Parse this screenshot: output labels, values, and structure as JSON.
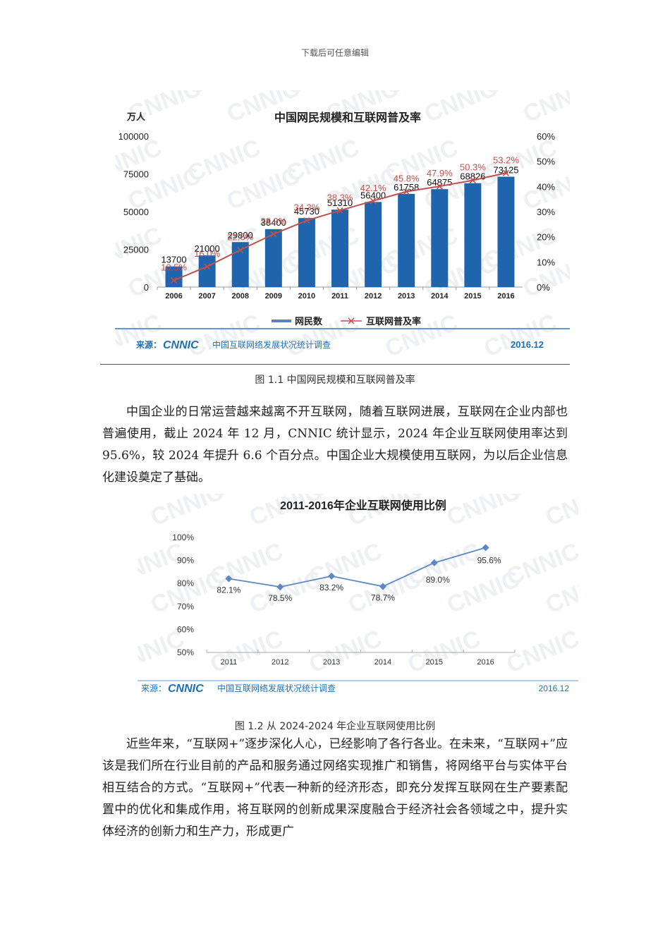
{
  "page": {
    "header_note": "下载后可任意编辑"
  },
  "figure1": {
    "caption": "图 1.1 中国网民规模和互联网普及率",
    "source_label": "来源：",
    "source_logo": "CNNIC",
    "source_text": "中国互联网络发展状况统计调查",
    "source_date": "2016.12",
    "watermark": "CNNIC"
  },
  "paragraph1": "中国企业的日常运营越来越离不开互联网，随着互联网进展，互联网在企业内部也普遍使用，截止 2024 年 12 月，CNNIC 统计显示，2024 年企业互联网使用率达到 95.6%，较 2024 年提升 6.6 个百分点。中国企业大规模使用互联网，为以后企业信息化建设奠定了基础。",
  "figure2": {
    "caption": "图 1.2 从 2024-2024 年企业互联网使用比例",
    "source_label": "来源：",
    "source_logo": "CNNIC",
    "source_text": "中国互联网络发展状况统计调查",
    "source_date": "2016.12"
  },
  "paragraph2": "近些年来，“互联网+”逐步深化人心，已经影响了各行各业。在未来，“互联网+”应该是我们所在行业目前的产品和服务通过网络实现推广和销售，将网络平台与实体平台相互结合的方式。“互联网+”代表一种新的经济形态，即充分发挥互联网在生产要素配置中的优化和集成作用，将互联网的创新成果深度融合于经济社会各领域之中，提升实体经济的创新力和生产力，形成更广",
  "colors": {
    "bar_blue": "#1f65ad",
    "line_red": "#c0504d",
    "line_blue": "#5b87c5",
    "source_blue": "#1f6fb2",
    "rule_blue": "#5b9bd5"
  },
  "chart_data": [
    {
      "type": "bar",
      "title": "中国网民规模和互联网普及率",
      "ylabel": "万人",
      "y2label": "",
      "categories": [
        "2006",
        "2007",
        "2008",
        "2009",
        "2010",
        "2011",
        "2012",
        "2013",
        "2014",
        "2015",
        "2016"
      ],
      "series": [
        {
          "name": "网民数",
          "type": "bar",
          "axis": "left",
          "values": [
            13700,
            21000,
            29800,
            38400,
            45730,
            51310,
            56400,
            61758,
            64875,
            68826,
            73125
          ],
          "labels": [
            "13700",
            "21000",
            "29800",
            "38400",
            "45730",
            "51310",
            "56400",
            "61758",
            "64875",
            "68826",
            "73125"
          ]
        },
        {
          "name": "互联网普及率",
          "type": "line",
          "axis": "right",
          "values": [
            10.5,
            16.0,
            22.6,
            28.9,
            34.3,
            38.3,
            42.1,
            45.8,
            47.9,
            50.3,
            53.2
          ],
          "labels": [
            "10.5%",
            "16.0%",
            "22.6%",
            "28.9%",
            "34.3%",
            "38.3%",
            "42.1%",
            "45.8%",
            "47.9%",
            "50.3%",
            "53.2%"
          ]
        }
      ],
      "ylim": [
        0,
        100000
      ],
      "yticks": [
        "0",
        "25000",
        "50000",
        "75000",
        "100000"
      ],
      "y2lim": [
        0,
        60
      ],
      "y2ticks": [
        "0%",
        "10%",
        "20%",
        "30%",
        "40%",
        "50%",
        "60%"
      ],
      "legend": [
        "网民数",
        "互联网普及率"
      ],
      "legend_position": "bottom",
      "grid": false
    },
    {
      "type": "line",
      "title": "2011-2016年企业互联网使用比例",
      "categories": [
        "2011",
        "2012",
        "2013",
        "2014",
        "2015",
        "2016"
      ],
      "series": [
        {
          "name": "企业互联网使用比例",
          "values": [
            82.1,
            78.5,
            83.2,
            78.7,
            89.0,
            95.6
          ],
          "labels": [
            "82.1%",
            "78.5%",
            "83.2%",
            "78.7%",
            "89.0%",
            "95.6%"
          ]
        }
      ],
      "ylim": [
        50,
        100
      ],
      "yticks": [
        "50%",
        "60%",
        "70%",
        "80%",
        "90%",
        "100%"
      ],
      "grid": false
    }
  ]
}
